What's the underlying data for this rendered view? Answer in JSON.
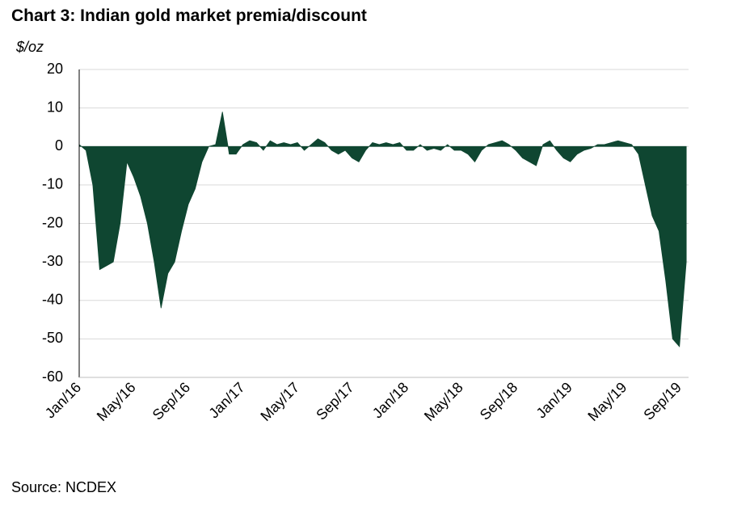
{
  "chart_data": {
    "type": "area",
    "title": "Chart 3: Indian gold market premia/discount",
    "y_label": "$/oz",
    "source": "Source: NCDEX",
    "color": "#0f4631",
    "grid": true,
    "ylim": [
      -60,
      20
    ],
    "yticks": [
      -60,
      -50,
      -40,
      -30,
      -20,
      -10,
      0,
      10,
      20
    ],
    "categories": [
      "Jan/16",
      null,
      null,
      null,
      null,
      null,
      null,
      null,
      "May/16",
      null,
      null,
      null,
      null,
      null,
      null,
      null,
      "Sep/16",
      null,
      null,
      null,
      null,
      null,
      null,
      null,
      "Jan/17",
      null,
      null,
      null,
      null,
      null,
      null,
      null,
      "May/17",
      null,
      null,
      null,
      null,
      null,
      null,
      null,
      "Sep/17",
      null,
      null,
      null,
      null,
      null,
      null,
      null,
      "Jan/18",
      null,
      null,
      null,
      null,
      null,
      null,
      null,
      "May/18",
      null,
      null,
      null,
      null,
      null,
      null,
      null,
      "Sep/18",
      null,
      null,
      null,
      null,
      null,
      null,
      null,
      "Jan/19",
      null,
      null,
      null,
      null,
      null,
      null,
      null,
      "May/19",
      null,
      null,
      null,
      null,
      null,
      null,
      null,
      "Sep/19",
      null
    ],
    "values": [
      0.5,
      -1,
      -10,
      -32,
      -31,
      -30,
      -20,
      -4,
      -8,
      -13,
      -20,
      -30,
      -42,
      -33,
      -30,
      -22,
      -15,
      -11,
      -4,
      0,
      0.5,
      9,
      -2,
      -2,
      0.5,
      1.5,
      1,
      -1,
      1.5,
      0.5,
      1,
      0.5,
      1,
      -1,
      0.5,
      2,
      1,
      -1,
      -2,
      -1,
      -3,
      -4,
      -1,
      1,
      0.5,
      1,
      0.5,
      1,
      -1,
      -1,
      0.5,
      -1,
      -0.5,
      -1,
      0.5,
      -1,
      -1,
      -2,
      -4,
      -1,
      0.5,
      1,
      1.5,
      0.5,
      -1,
      -3,
      -4,
      -5,
      0.5,
      1.5,
      -1,
      -3,
      -4,
      -2,
      -1,
      -0.5,
      0.5,
      0.5,
      1,
      1.5,
      1,
      0.5,
      -2,
      -10,
      -18,
      -22,
      -35,
      -50,
      -52,
      -30
    ]
  }
}
